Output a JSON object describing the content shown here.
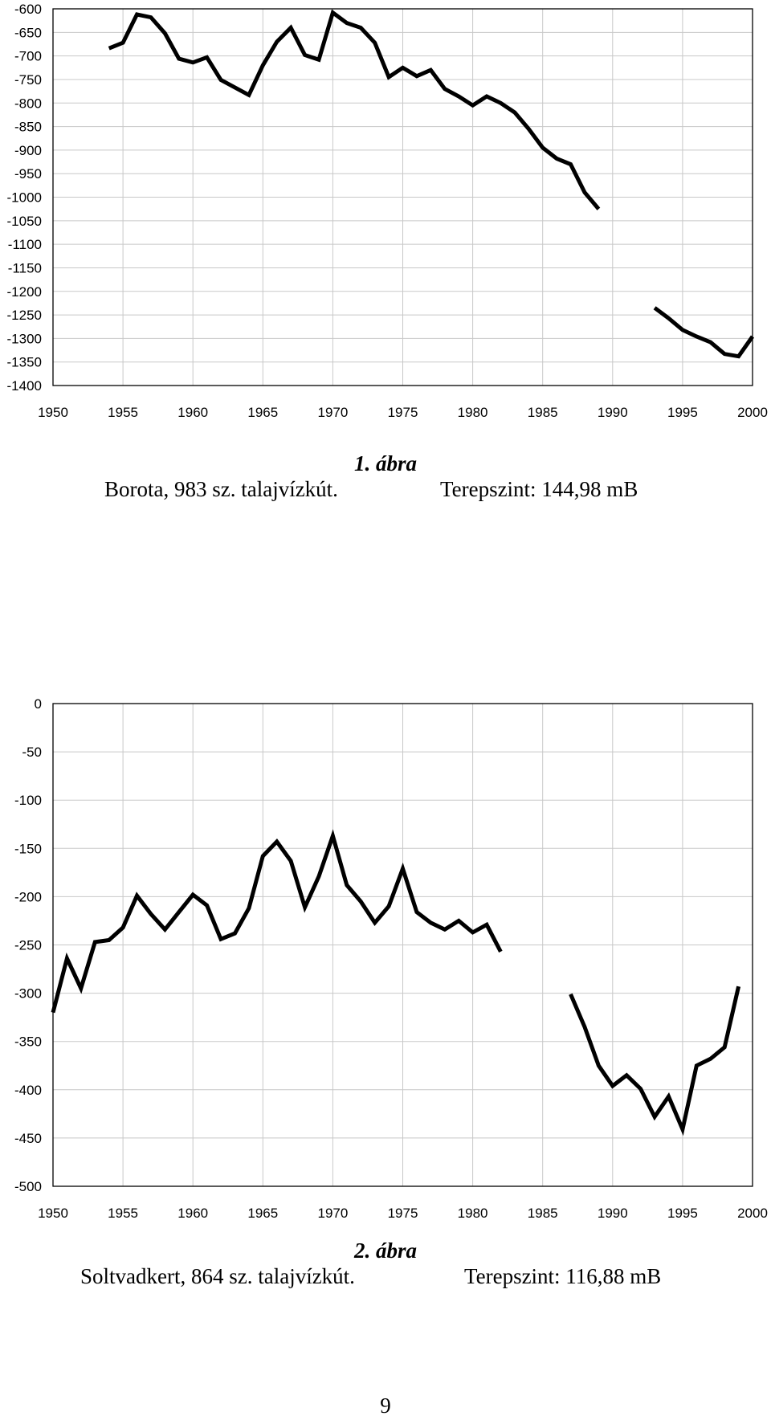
{
  "chart_data": [
    {
      "type": "line",
      "title": "",
      "xlabel": "",
      "ylabel": "",
      "xlim": [
        1950,
        2000
      ],
      "ylim": [
        -1400,
        -600
      ],
      "x_ticks": [
        1950,
        1955,
        1960,
        1965,
        1970,
        1975,
        1980,
        1985,
        1990,
        1995,
        2000
      ],
      "y_ticks": [
        -600,
        -650,
        -700,
        -750,
        -800,
        -850,
        -900,
        -950,
        -1000,
        -1050,
        -1100,
        -1150,
        -1200,
        -1250,
        -1300,
        -1350,
        -1400
      ],
      "grid": true,
      "series": [
        {
          "segments": [
            [
              [
                1954,
                -684
              ],
              [
                1955,
                -672
              ],
              [
                1956,
                -612
              ],
              [
                1957,
                -618
              ],
              [
                1958,
                -652
              ],
              [
                1959,
                -706
              ],
              [
                1960,
                -714
              ],
              [
                1961,
                -703
              ],
              [
                1962,
                -751
              ],
              [
                1963,
                -767
              ],
              [
                1964,
                -783
              ],
              [
                1965,
                -720
              ],
              [
                1966,
                -670
              ],
              [
                1967,
                -640
              ],
              [
                1968,
                -698
              ],
              [
                1969,
                -708
              ],
              [
                1970,
                -608
              ],
              [
                1971,
                -630
              ],
              [
                1972,
                -640
              ],
              [
                1973,
                -672
              ],
              [
                1974,
                -745
              ],
              [
                1975,
                -725
              ],
              [
                1976,
                -743
              ],
              [
                1977,
                -730
              ],
              [
                1978,
                -770
              ],
              [
                1979,
                -786
              ],
              [
                1980,
                -805
              ],
              [
                1981,
                -786
              ],
              [
                1982,
                -800
              ],
              [
                1983,
                -820
              ],
              [
                1984,
                -855
              ],
              [
                1985,
                -895
              ],
              [
                1986,
                -918
              ],
              [
                1987,
                -930
              ],
              [
                1988,
                -990
              ],
              [
                1989,
                -1025
              ]
            ],
            [
              [
                1993,
                -1235
              ],
              [
                1994,
                -1257
              ],
              [
                1995,
                -1282
              ],
              [
                1996,
                -1296
              ],
              [
                1997,
                -1308
              ],
              [
                1998,
                -1333
              ],
              [
                1999,
                -1338
              ],
              [
                2000,
                -1296
              ]
            ]
          ]
        }
      ]
    },
    {
      "type": "line",
      "title": "",
      "xlabel": "",
      "ylabel": "",
      "xlim": [
        1950,
        2000
      ],
      "ylim": [
        -500,
        0
      ],
      "x_ticks": [
        1950,
        1955,
        1960,
        1965,
        1970,
        1975,
        1980,
        1985,
        1990,
        1995,
        2000
      ],
      "y_ticks": [
        0,
        -50,
        -100,
        -150,
        -200,
        -250,
        -300,
        -350,
        -400,
        -450,
        -500
      ],
      "grid": true,
      "series": [
        {
          "segments": [
            [
              [
                1950,
                -320
              ],
              [
                1951,
                -264
              ],
              [
                1952,
                -295
              ],
              [
                1953,
                -247
              ],
              [
                1954,
                -245
              ],
              [
                1955,
                -232
              ],
              [
                1956,
                -199
              ],
              [
                1957,
                -218
              ],
              [
                1958,
                -234
              ],
              [
                1959,
                -216
              ],
              [
                1960,
                -198
              ],
              [
                1961,
                -209
              ],
              [
                1962,
                -244
              ],
              [
                1963,
                -238
              ],
              [
                1964,
                -212
              ],
              [
                1965,
                -158
              ],
              [
                1966,
                -143
              ],
              [
                1967,
                -163
              ],
              [
                1968,
                -211
              ],
              [
                1969,
                -179
              ],
              [
                1970,
                -137
              ],
              [
                1971,
                -188
              ],
              [
                1972,
                -205
              ],
              [
                1973,
                -227
              ],
              [
                1974,
                -210
              ],
              [
                1975,
                -171
              ],
              [
                1976,
                -216
              ],
              [
                1977,
                -227
              ],
              [
                1978,
                -234
              ],
              [
                1979,
                -225
              ],
              [
                1980,
                -237
              ],
              [
                1981,
                -229
              ],
              [
                1982,
                -257
              ]
            ],
            [
              [
                1987,
                -301
              ],
              [
                1988,
                -335
              ],
              [
                1989,
                -375
              ],
              [
                1990,
                -396
              ],
              [
                1991,
                -385
              ],
              [
                1992,
                -399
              ],
              [
                1993,
                -428
              ],
              [
                1994,
                -407
              ],
              [
                1995,
                -441
              ],
              [
                1996,
                -375
              ],
              [
                1997,
                -368
              ],
              [
                1998,
                -356
              ],
              [
                1999,
                -293
              ]
            ]
          ]
        }
      ]
    }
  ],
  "captions": [
    {
      "figure": "1. ábra",
      "left": "Borota, 983 sz. talajvízkút.",
      "right": "Terepszint: 144,98 mB"
    },
    {
      "figure": "2. ábra",
      "left": "Soltvadkert, 864 sz. talajvízkút.",
      "right": "Terepszint: 116,88 mB"
    }
  ],
  "page_number": "9",
  "colors": {
    "line": "#000000",
    "grid": "#c8c8c8",
    "frame": "#000000"
  }
}
